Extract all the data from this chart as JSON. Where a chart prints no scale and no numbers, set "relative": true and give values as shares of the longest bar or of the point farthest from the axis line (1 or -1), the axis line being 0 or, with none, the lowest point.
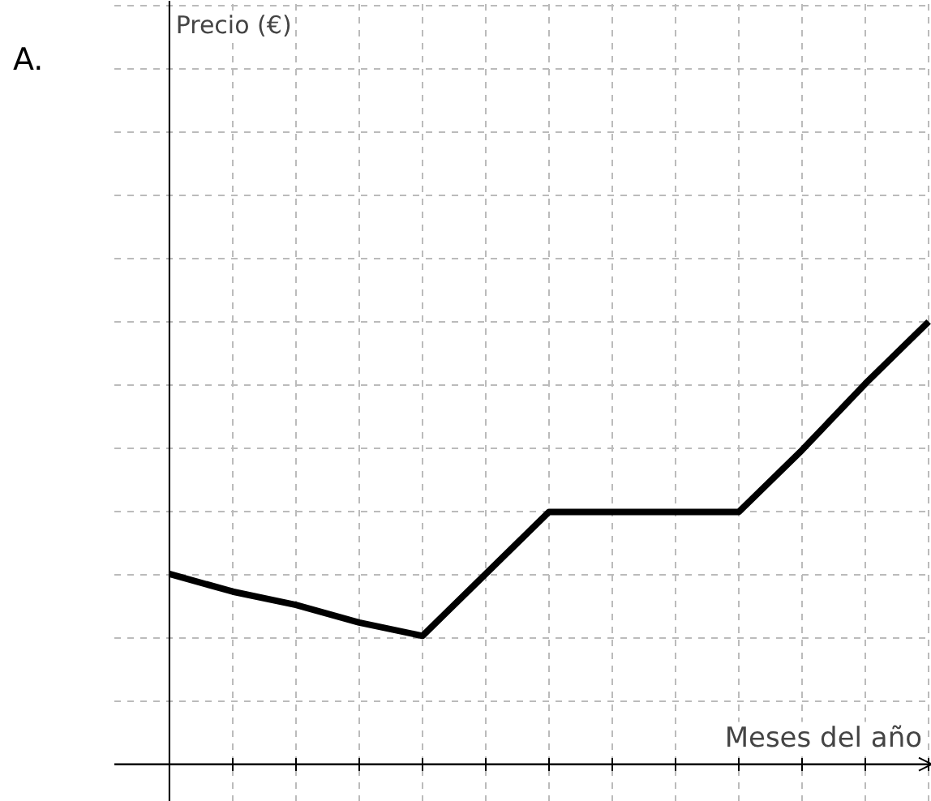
{
  "chart_data": {
    "type": "line",
    "relative": true,
    "annotations": [
      "A.",
      "Precio (€)"
    ],
    "xlabel": "Meses del año",
    "categories": [
      null,
      null,
      null,
      null,
      null,
      null,
      null,
      null,
      null,
      null,
      null,
      null,
      null
    ],
    "series": [
      {
        "color": "#000000",
        "values": [
          0.43,
          0.39,
          0.36,
          0.32,
          0.29,
          0.43,
          0.57,
          0.57,
          0.57,
          0.57,
          0.71,
          0.86,
          1
        ]
      }
    ],
    "grid": true,
    "marker": "none",
    "line_style": "solid"
  }
}
